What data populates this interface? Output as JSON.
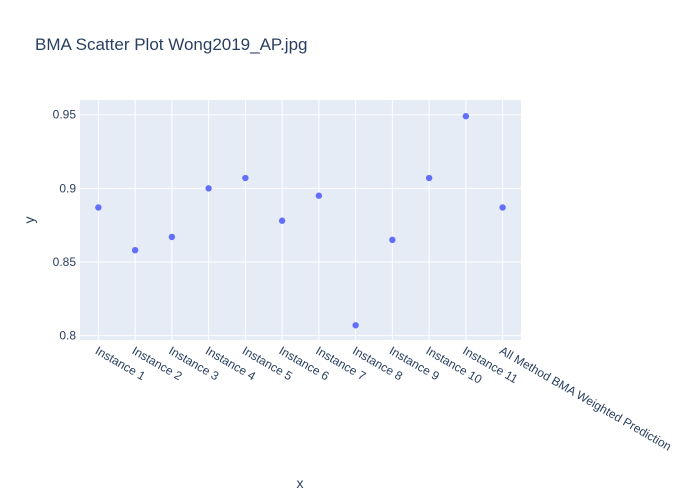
{
  "chart_data": {
    "type": "scatter",
    "title": "BMA Scatter Plot Wong2019_AP.jpg",
    "xlabel": "x",
    "ylabel": "y",
    "categories": [
      "Instance 1",
      "Instance 2",
      "Instance 3",
      "Instance 4",
      "Instance 5",
      "Instance 6",
      "Instance 7",
      "Instance 8",
      "Instance 9",
      "Instance 10",
      "Instance 11",
      "All Method BMA Weighted Prediction"
    ],
    "values": [
      0.887,
      0.858,
      0.867,
      0.9,
      0.907,
      0.878,
      0.895,
      0.807,
      0.865,
      0.907,
      0.949,
      0.887
    ],
    "ylim": [
      0.797,
      0.96
    ],
    "yticks": [
      0.8,
      0.85,
      0.9,
      0.95
    ],
    "ytick_labels": [
      "0.8",
      "0.85",
      "0.9",
      "0.95"
    ],
    "grid": true,
    "legend": "none",
    "colors": {
      "marker": "#636efa",
      "plot_bg": "#e5ecf6",
      "grid": "#ffffff",
      "text": "#2a3f5f"
    }
  }
}
